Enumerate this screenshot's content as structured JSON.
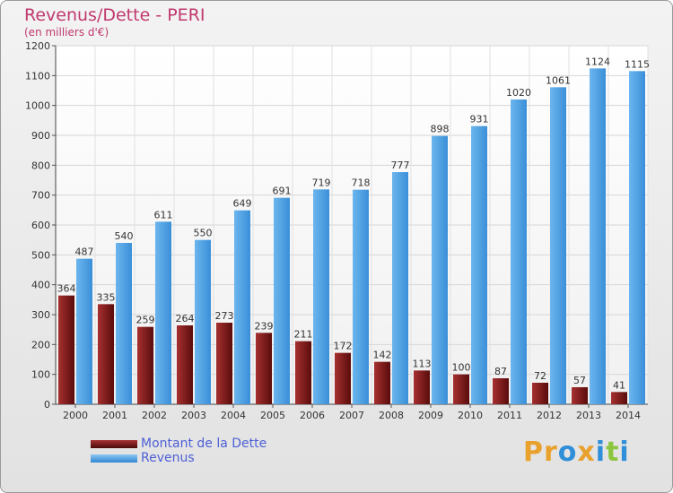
{
  "header": {
    "title": "Revenus/Dette - PERI",
    "subtitle": "(en milliers d'€)"
  },
  "legend": {
    "items": [
      {
        "label": "Montant de la Dette",
        "color": "#7a1414"
      },
      {
        "label": "Revenus",
        "color": "#4ea3e4"
      }
    ]
  },
  "logo": {
    "letters": [
      "P",
      "r",
      "o",
      "x",
      "i",
      "t",
      "i"
    ],
    "colors": [
      "#e9a12d",
      "#e9a12d",
      "#2f8ed8",
      "#e9a12d",
      "#2f8ed8",
      "#8bc63e",
      "#2f8ed8"
    ]
  },
  "chart_data": {
    "type": "bar",
    "categories": [
      "2000",
      "2001",
      "2002",
      "2003",
      "2004",
      "2005",
      "2006",
      "2007",
      "2008",
      "2009",
      "2010",
      "2011",
      "2012",
      "2013",
      "2014"
    ],
    "series": [
      {
        "name": "Montant de la Dette",
        "color": "#7a1414",
        "values": [
          364,
          335,
          259,
          264,
          273,
          239,
          211,
          172,
          142,
          113,
          100,
          87,
          72,
          57,
          41
        ]
      },
      {
        "name": "Revenus",
        "color": "#4ea3e4",
        "values": [
          487,
          540,
          611,
          550,
          649,
          691,
          719,
          718,
          777,
          898,
          931,
          1020,
          1061,
          1124,
          1115
        ]
      }
    ],
    "title": "Revenus/Dette - PERI",
    "subtitle": "(en milliers d'€)",
    "yticks": [
      0,
      100,
      200,
      300,
      400,
      500,
      600,
      700,
      800,
      900,
      1000,
      1100,
      1200
    ],
    "ylim": [
      0,
      1200
    ],
    "grid": true,
    "legend_position": "bottom-left"
  }
}
